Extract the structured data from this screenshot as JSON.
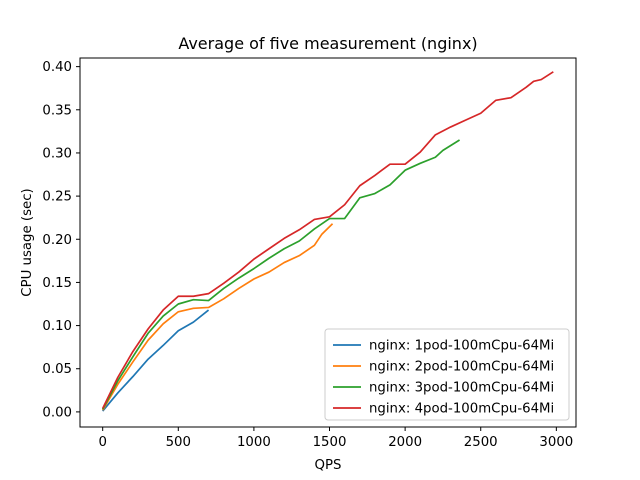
{
  "chart_data": {
    "type": "line",
    "title": "Average of five measurement (nginx)",
    "xlabel": "QPS",
    "ylabel": "CPU usage (sec)",
    "xlim": [
      -150,
      3130
    ],
    "ylim": [
      -0.0175,
      0.41
    ],
    "xticks": [
      0,
      500,
      1000,
      1500,
      2000,
      2500,
      3000
    ],
    "yticks": [
      0.0,
      0.05,
      0.1,
      0.15,
      0.2,
      0.25,
      0.3,
      0.35,
      0.4
    ],
    "xtick_labels": [
      "0",
      "500",
      "1000",
      "1500",
      "2000",
      "2500",
      "3000"
    ],
    "ytick_labels": [
      "0.00",
      "0.05",
      "0.10",
      "0.15",
      "0.20",
      "0.25",
      "0.30",
      "0.35",
      "0.40"
    ],
    "grid": false,
    "legend_position": "lower-right",
    "series": [
      {
        "name": "nginx: 1pod-100mCpu-64Mi",
        "color": "#1f77b4",
        "points": [
          [
            0,
            0.001
          ],
          [
            100,
            0.022
          ],
          [
            200,
            0.041
          ],
          [
            300,
            0.061
          ],
          [
            400,
            0.077
          ],
          [
            500,
            0.094
          ],
          [
            600,
            0.104
          ],
          [
            700,
            0.118
          ]
        ]
      },
      {
        "name": "nginx: 2pod-100mCpu-64Mi",
        "color": "#ff7f0e",
        "points": [
          [
            0,
            0.002
          ],
          [
            100,
            0.032
          ],
          [
            200,
            0.058
          ],
          [
            300,
            0.083
          ],
          [
            400,
            0.102
          ],
          [
            500,
            0.116
          ],
          [
            600,
            0.12
          ],
          [
            700,
            0.121
          ],
          [
            800,
            0.131
          ],
          [
            900,
            0.143
          ],
          [
            1000,
            0.154
          ],
          [
            1100,
            0.162
          ],
          [
            1200,
            0.173
          ],
          [
            1300,
            0.181
          ],
          [
            1400,
            0.193
          ],
          [
            1450,
            0.206
          ],
          [
            1520,
            0.218
          ]
        ]
      },
      {
        "name": "nginx: 3pod-100mCpu-64Mi",
        "color": "#2ca02c",
        "points": [
          [
            0,
            0.003
          ],
          [
            100,
            0.036
          ],
          [
            200,
            0.064
          ],
          [
            300,
            0.091
          ],
          [
            400,
            0.111
          ],
          [
            500,
            0.125
          ],
          [
            600,
            0.13
          ],
          [
            700,
            0.129
          ],
          [
            800,
            0.143
          ],
          [
            900,
            0.155
          ],
          [
            1000,
            0.166
          ],
          [
            1100,
            0.178
          ],
          [
            1200,
            0.189
          ],
          [
            1300,
            0.198
          ],
          [
            1400,
            0.212
          ],
          [
            1500,
            0.224
          ],
          [
            1600,
            0.224
          ],
          [
            1700,
            0.248
          ],
          [
            1800,
            0.253
          ],
          [
            1900,
            0.263
          ],
          [
            2000,
            0.28
          ],
          [
            2100,
            0.288
          ],
          [
            2200,
            0.295
          ],
          [
            2250,
            0.303
          ],
          [
            2360,
            0.315
          ]
        ]
      },
      {
        "name": "nginx: 4pod-100mCpu-64Mi",
        "color": "#d62728",
        "points": [
          [
            0,
            0.004
          ],
          [
            100,
            0.04
          ],
          [
            200,
            0.07
          ],
          [
            300,
            0.096
          ],
          [
            400,
            0.118
          ],
          [
            500,
            0.134
          ],
          [
            600,
            0.134
          ],
          [
            700,
            0.137
          ],
          [
            800,
            0.149
          ],
          [
            900,
            0.162
          ],
          [
            1000,
            0.177
          ],
          [
            1100,
            0.189
          ],
          [
            1200,
            0.201
          ],
          [
            1300,
            0.211
          ],
          [
            1400,
            0.223
          ],
          [
            1500,
            0.226
          ],
          [
            1600,
            0.24
          ],
          [
            1700,
            0.262
          ],
          [
            1800,
            0.274
          ],
          [
            1900,
            0.287
          ],
          [
            2000,
            0.287
          ],
          [
            2100,
            0.301
          ],
          [
            2200,
            0.321
          ],
          [
            2300,
            0.33
          ],
          [
            2400,
            0.338
          ],
          [
            2500,
            0.346
          ],
          [
            2600,
            0.361
          ],
          [
            2700,
            0.364
          ],
          [
            2800,
            0.376
          ],
          [
            2850,
            0.383
          ],
          [
            2900,
            0.385
          ],
          [
            2980,
            0.394
          ]
        ]
      }
    ]
  }
}
